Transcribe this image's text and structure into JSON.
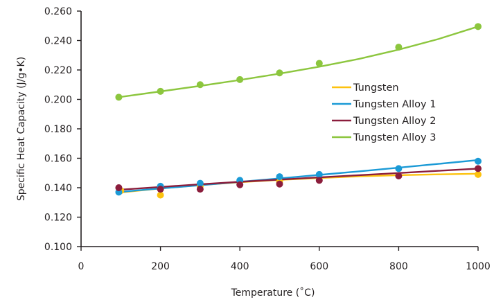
{
  "chart_data": {
    "type": "scatter",
    "title": "",
    "xlabel": "Temperature (˚C)",
    "ylabel": "Specific Heat Capacity (J/g•K)",
    "xlim": [
      0,
      1000
    ],
    "ylim": [
      0.1,
      0.26
    ],
    "x_ticks": [
      0,
      200,
      400,
      600,
      800,
      1000
    ],
    "x_tick_labels": [
      "0",
      "200",
      "400",
      "600",
      "800",
      "1000"
    ],
    "y_ticks": [
      0.1,
      0.12,
      0.14,
      0.16,
      0.18,
      0.2,
      0.22,
      0.24,
      0.26
    ],
    "y_tick_labels": [
      "0.100",
      "0.120",
      "0.140",
      "0.160",
      "0.180",
      "0.200",
      "0.220",
      "0.240",
      "0.260"
    ],
    "grid": false,
    "legend_position": "right",
    "series": [
      {
        "name": "Tungsten",
        "color": "#fdc20f",
        "points": [
          [
            100,
            0.138
          ],
          [
            200,
            0.135
          ],
          [
            300,
            0.141
          ],
          [
            500,
            0.144
          ],
          [
            1000,
            0.149
          ]
        ],
        "fit": [
          [
            90,
            0.1365
          ],
          [
            200,
            0.1395
          ],
          [
            300,
            0.1418
          ],
          [
            400,
            0.1437
          ],
          [
            500,
            0.1453
          ],
          [
            600,
            0.1466
          ],
          [
            700,
            0.1477
          ],
          [
            800,
            0.1485
          ],
          [
            900,
            0.1491
          ],
          [
            1000,
            0.1495
          ]
        ]
      },
      {
        "name": "Tungsten Alloy 1",
        "color": "#1b9ad6",
        "points": [
          [
            95,
            0.137
          ],
          [
            200,
            0.141
          ],
          [
            300,
            0.143
          ],
          [
            400,
            0.145
          ],
          [
            500,
            0.1475
          ],
          [
            600,
            0.149
          ],
          [
            800,
            0.153
          ],
          [
            1000,
            0.158
          ]
        ],
        "fit": [
          [
            90,
            0.137
          ],
          [
            200,
            0.1395
          ],
          [
            300,
            0.1417
          ],
          [
            400,
            0.144
          ],
          [
            500,
            0.1463
          ],
          [
            600,
            0.1487
          ],
          [
            700,
            0.1511
          ],
          [
            800,
            0.1536
          ],
          [
            900,
            0.1562
          ],
          [
            1000,
            0.1588
          ]
        ]
      },
      {
        "name": "Tungsten Alloy 2",
        "color": "#8b1d3c",
        "points": [
          [
            95,
            0.14
          ],
          [
            200,
            0.139
          ],
          [
            300,
            0.139
          ],
          [
            400,
            0.142
          ],
          [
            500,
            0.1425
          ],
          [
            600,
            0.145
          ],
          [
            800,
            0.148
          ],
          [
            1000,
            0.153
          ]
        ],
        "fit": [
          [
            90,
            0.1385
          ],
          [
            200,
            0.1405
          ],
          [
            300,
            0.1423
          ],
          [
            400,
            0.144
          ],
          [
            500,
            0.1455
          ],
          [
            600,
            0.147
          ],
          [
            700,
            0.1485
          ],
          [
            800,
            0.15
          ],
          [
            900,
            0.1515
          ],
          [
            1000,
            0.153
          ]
        ]
      },
      {
        "name": "Tungsten Alloy 3",
        "color": "#8cc63e",
        "points": [
          [
            95,
            0.2015
          ],
          [
            200,
            0.2055
          ],
          [
            300,
            0.21
          ],
          [
            400,
            0.2135
          ],
          [
            500,
            0.218
          ],
          [
            600,
            0.2245
          ],
          [
            800,
            0.2355
          ],
          [
            1000,
            0.2495
          ]
        ],
        "fit": [
          [
            95,
            0.2015
          ],
          [
            200,
            0.2054
          ],
          [
            300,
            0.2092
          ],
          [
            400,
            0.2132
          ],
          [
            500,
            0.2175
          ],
          [
            600,
            0.2222
          ],
          [
            700,
            0.2275
          ],
          [
            800,
            0.2338
          ],
          [
            900,
            0.241
          ],
          [
            1000,
            0.2495
          ]
        ]
      }
    ]
  }
}
